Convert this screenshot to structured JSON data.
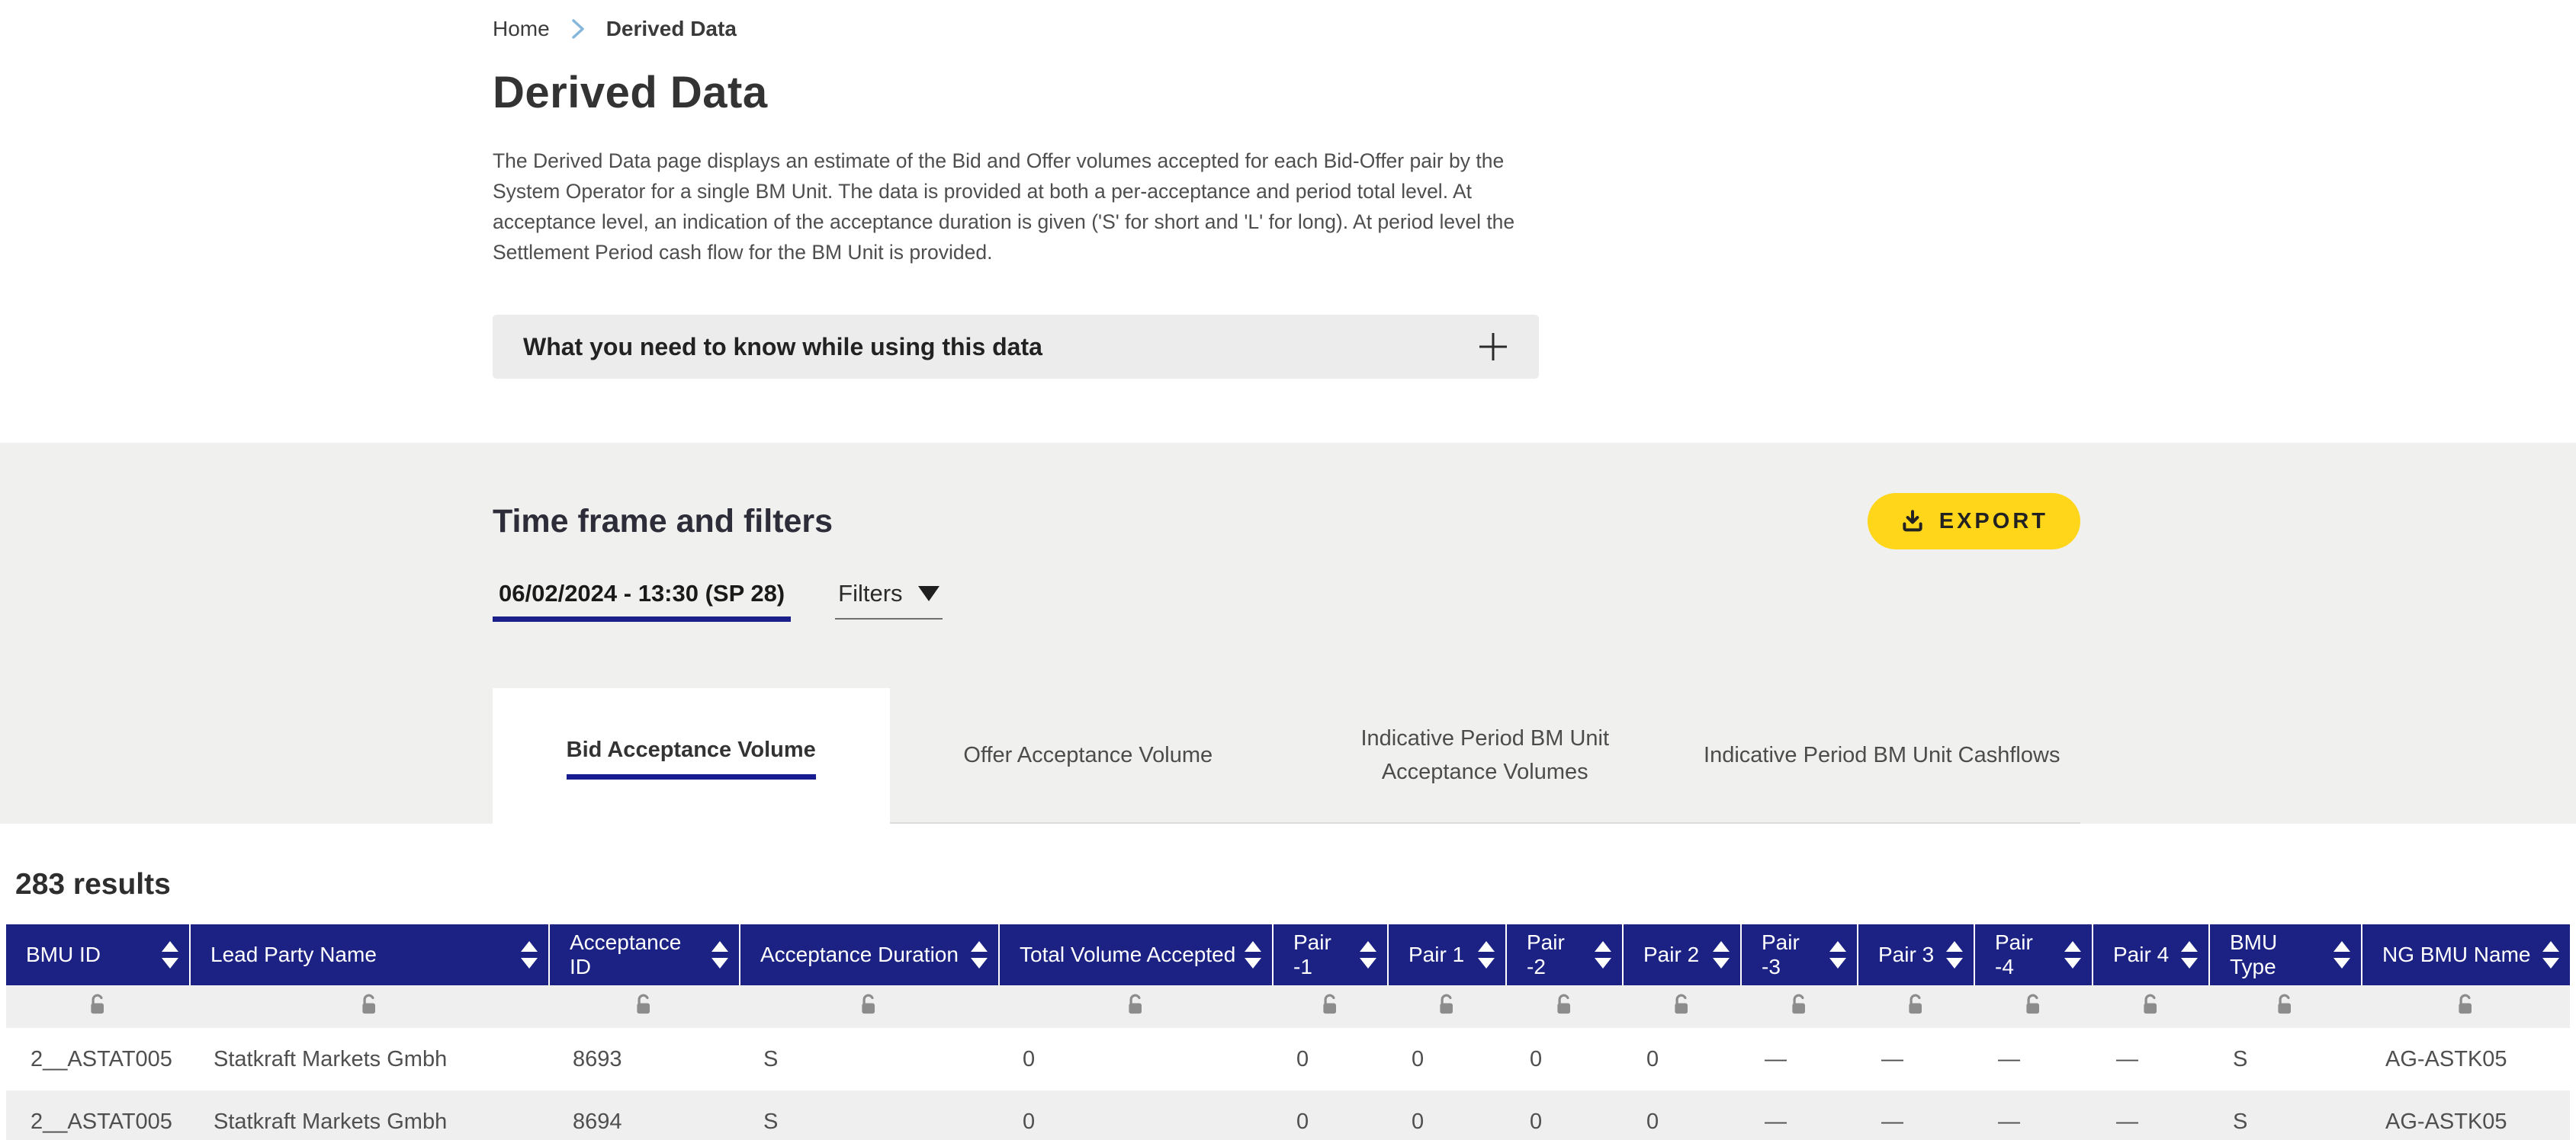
{
  "breadcrumb": {
    "home": "Home",
    "current": "Derived Data"
  },
  "page": {
    "title": "Derived Data",
    "description": "The Derived Data page displays an estimate of the Bid and Offer volumes accepted for each Bid-Offer pair by the System Operator for a single BM Unit. The data is provided at both a per-acceptance and period total level. At acceptance level, an indication of the acceptance duration is given ('S' for short and 'L' for long). At period level the Settlement Period cash flow for the BM Unit is provided."
  },
  "accordion": {
    "title": "What you need to know while using this data",
    "icon": "plus-icon"
  },
  "timeframe_section": {
    "heading": "Time frame and filters",
    "export_label": "EXPORT",
    "export_icon": "download-icon",
    "selected_timeframe": "06/02/2024 - 13:30 (SP 28)",
    "filters_label": "Filters",
    "filters_icon": "caret-down-icon"
  },
  "tabs": [
    {
      "label": "Bid Acceptance Volume",
      "active": true
    },
    {
      "label": "Offer Acceptance Volume",
      "active": false
    },
    {
      "label": "Indicative Period BM Unit Acceptance Volumes",
      "active": false
    },
    {
      "label": "Indicative Period BM Unit Cashflows",
      "active": false
    }
  ],
  "results_count": "283 results",
  "table": {
    "lock_icon": "unlocked-padlock-icon",
    "sort_icon": "sort-arrows-icon",
    "columns": [
      "BMU ID",
      "Lead Party Name",
      "Acceptance ID",
      "Acceptance Duration",
      "Total Volume Accepted",
      "Pair -1",
      "Pair 1",
      "Pair -2",
      "Pair 2",
      "Pair -3",
      "Pair 3",
      "Pair -4",
      "Pair 4",
      "BMU Type",
      "NG BMU Name"
    ],
    "rows": [
      [
        "2__ASTAT005",
        "Statkraft Markets Gmbh",
        "8693",
        "S",
        "0",
        "0",
        "0",
        "0",
        "0",
        "—",
        "—",
        "—",
        "—",
        "S",
        "AG-ASTK05"
      ],
      [
        "2__ASTAT005",
        "Statkraft Markets Gmbh",
        "8694",
        "S",
        "0",
        "0",
        "0",
        "0",
        "0",
        "—",
        "—",
        "—",
        "—",
        "S",
        "AG-ASTK05"
      ]
    ]
  },
  "colors": {
    "table_header_bg": "#1b2283",
    "accent_underline": "#1b1f8a",
    "export_button_bg": "#ffd619",
    "band_bg": "#f0f0ee",
    "row_alt_bg": "#efefef",
    "breadcrumb_chevron": "#85b7dd"
  }
}
